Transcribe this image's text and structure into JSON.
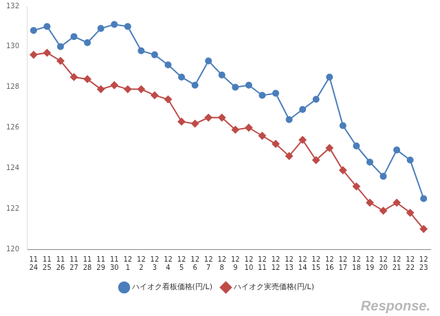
{
  "chart_data": {
    "type": "line",
    "categories": [
      [
        "11",
        "24"
      ],
      [
        "11",
        "25"
      ],
      [
        "11",
        "26"
      ],
      [
        "11",
        "27"
      ],
      [
        "11",
        "28"
      ],
      [
        "11",
        "29"
      ],
      [
        "11",
        "30"
      ],
      [
        "12",
        "1"
      ],
      [
        "12",
        "2"
      ],
      [
        "12",
        "3"
      ],
      [
        "12",
        "4"
      ],
      [
        "12",
        "5"
      ],
      [
        "12",
        "6"
      ],
      [
        "12",
        "7"
      ],
      [
        "12",
        "8"
      ],
      [
        "12",
        "9"
      ],
      [
        "12",
        "10"
      ],
      [
        "12",
        "11"
      ],
      [
        "12",
        "12"
      ],
      [
        "12",
        "13"
      ],
      [
        "12",
        "14"
      ],
      [
        "12",
        "15"
      ],
      [
        "12",
        "16"
      ],
      [
        "12",
        "17"
      ],
      [
        "12",
        "18"
      ],
      [
        "12",
        "19"
      ],
      [
        "12",
        "20"
      ],
      [
        "12",
        "21"
      ],
      [
        "12",
        "22"
      ],
      [
        "12",
        "23"
      ]
    ],
    "series": [
      {
        "name": "ハイオク看板価格(円/L)",
        "color": "#4a7ebb",
        "marker": "circle",
        "values": [
          130.8,
          131.0,
          130.0,
          130.5,
          130.2,
          130.9,
          131.1,
          131.0,
          129.8,
          129.6,
          129.1,
          128.5,
          128.1,
          129.3,
          128.6,
          128.0,
          128.1,
          127.6,
          127.7,
          126.4,
          126.9,
          127.4,
          128.5,
          126.1,
          125.1,
          124.3,
          123.6,
          124.9,
          124.4,
          122.5
        ]
      },
      {
        "name": "ハイオク実売価格(円/L)",
        "color": "#be4b48",
        "marker": "diamond",
        "values": [
          129.6,
          129.7,
          129.3,
          128.5,
          128.4,
          127.9,
          128.1,
          127.9,
          127.9,
          127.6,
          127.4,
          126.3,
          126.2,
          126.5,
          126.5,
          125.9,
          126.0,
          125.6,
          125.2,
          124.6,
          125.4,
          124.4,
          125.0,
          123.9,
          123.1,
          122.3,
          121.9,
          122.3,
          121.8,
          121.0
        ]
      }
    ],
    "ylim": [
      120,
      132
    ],
    "yticks": [
      120,
      122,
      124,
      126,
      128,
      130,
      132
    ],
    "grid": false,
    "legend": "bottom",
    "annotations": [
      "Response."
    ]
  }
}
